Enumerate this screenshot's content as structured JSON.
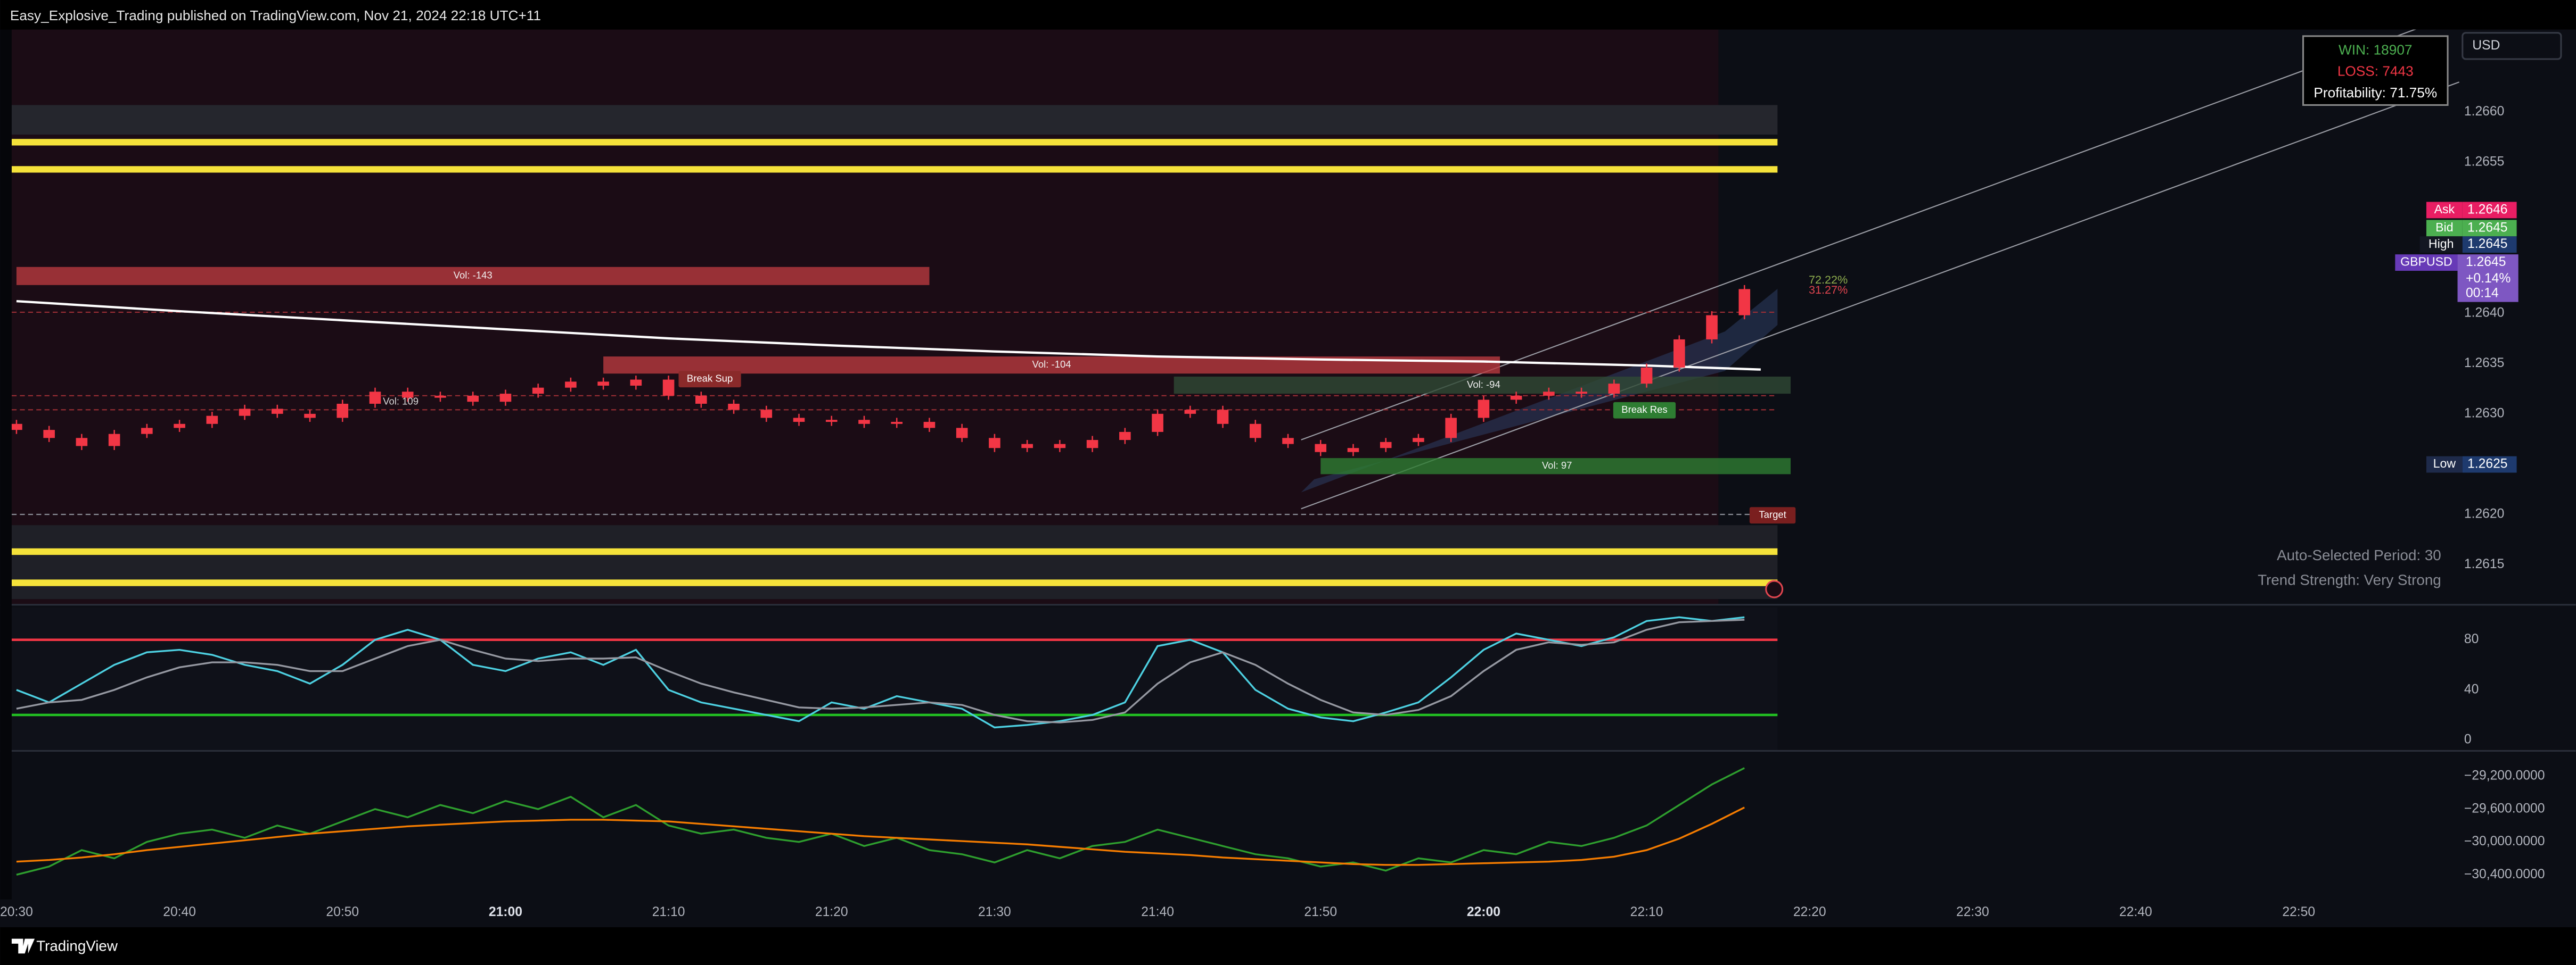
{
  "header": {
    "title": "Easy_Explosive_Trading published on TradingView.com, Nov 21, 2024 22:18 UTC+11"
  },
  "footer": {
    "brand": "TradingView"
  },
  "currency": "USD",
  "stats": {
    "win": "WIN: 18907",
    "loss": "LOSS: 7443",
    "profitability": "Profitability: 71.75%"
  },
  "quote": {
    "ask_label": "Ask",
    "ask": "1.2646",
    "bid_label": "Bid",
    "bid": "1.2645",
    "high_label": "High",
    "high": "1.2645",
    "symbol": "GBPUSD",
    "price": "1.2645",
    "change": "+0.14%",
    "countdown": "00:14",
    "low_label": "Low",
    "low": "1.2625"
  },
  "annotations": {
    "vol_left": "Vol: 109",
    "break_sup": "Break Sup",
    "break_res": "Break Res",
    "target": "Target",
    "pct_up": "72.22%",
    "pct_down": "31.27%",
    "period": "Auto-Selected Period: 30",
    "trend": "Trend Strength: Very Strong"
  },
  "chart_data": [
    {
      "type": "candlestick",
      "xlim": [
        "20:29",
        "23:07"
      ],
      "xticks": [
        "20:30",
        "20:40",
        "20:50",
        "21:00",
        "21:10",
        "21:20",
        "21:30",
        "21:40",
        "21:50",
        "22:00",
        "22:10",
        "22:20",
        "22:30",
        "22:40",
        "22:50"
      ],
      "ylim": [
        1.26111,
        1.26682
      ],
      "yticks": [
        {
          "value": 1.266,
          "label": "1.2660"
        },
        {
          "value": 1.2655,
          "label": "1.2655"
        },
        {
          "value": 1.264,
          "label": "1.2640"
        },
        {
          "value": 1.2635,
          "label": "1.2635"
        },
        {
          "value": 1.263,
          "label": "1.2630"
        },
        {
          "value": 1.262,
          "label": "1.2620"
        },
        {
          "value": 1.2615,
          "label": "1.2615"
        }
      ],
      "color": "#f23645",
      "x": [
        "20:30",
        "20:32",
        "20:34",
        "20:36",
        "20:38",
        "20:40",
        "20:42",
        "20:44",
        "20:46",
        "20:48",
        "20:50",
        "20:52",
        "20:54",
        "20:56",
        "20:58",
        "21:00",
        "21:02",
        "21:04",
        "21:06",
        "21:08",
        "21:10",
        "21:12",
        "21:14",
        "21:16",
        "21:18",
        "21:20",
        "21:22",
        "21:24",
        "21:26",
        "21:28",
        "21:30",
        "21:32",
        "21:34",
        "21:36",
        "21:38",
        "21:40",
        "21:42",
        "21:44",
        "21:46",
        "21:48",
        "21:50",
        "21:52",
        "21:54",
        "21:56",
        "21:58",
        "22:00",
        "22:02",
        "22:04",
        "22:06",
        "22:08",
        "22:10",
        "22:12",
        "22:14",
        "22:16"
      ],
      "candles": {
        "open": [
          1.2629,
          1.26284,
          1.26276,
          1.26268,
          1.2628,
          1.26286,
          1.2629,
          1.26298,
          1.26305,
          1.263,
          1.26296,
          1.2631,
          1.26322,
          1.26316,
          1.26318,
          1.26312,
          1.2632,
          1.26326,
          1.26332,
          1.26328,
          1.26334,
          1.26318,
          1.2631,
          1.26304,
          1.26296,
          1.26292,
          1.26294,
          1.2629,
          1.26292,
          1.26286,
          1.26276,
          1.26266,
          1.2627,
          1.26266,
          1.26274,
          1.26282,
          1.263,
          1.26304,
          1.2629,
          1.26276,
          1.2627,
          1.26262,
          1.26266,
          1.26272,
          1.26276,
          1.26296,
          1.26314,
          1.26318,
          1.26322,
          1.2632,
          1.2633,
          1.26346,
          1.26374,
          1.26398
        ],
        "high": [
          1.26294,
          1.26288,
          1.2628,
          1.26284,
          1.2629,
          1.26294,
          1.26302,
          1.26309,
          1.26309,
          1.26304,
          1.26314,
          1.26326,
          1.26326,
          1.26322,
          1.26322,
          1.26324,
          1.2633,
          1.26336,
          1.26336,
          1.26338,
          1.26338,
          1.26322,
          1.26314,
          1.26308,
          1.263,
          1.26298,
          1.26298,
          1.26296,
          1.26296,
          1.2629,
          1.2628,
          1.26274,
          1.26274,
          1.26278,
          1.26286,
          1.26304,
          1.26308,
          1.26308,
          1.26294,
          1.2628,
          1.26274,
          1.2627,
          1.26276,
          1.2628,
          1.263,
          1.26318,
          1.26322,
          1.26326,
          1.26326,
          1.26334,
          1.2635,
          1.26378,
          1.26402,
          1.26428
        ],
        "low": [
          1.2628,
          1.26272,
          1.26264,
          1.26264,
          1.26276,
          1.26282,
          1.26286,
          1.26294,
          1.26296,
          1.26292,
          1.26292,
          1.26306,
          1.26312,
          1.26312,
          1.26308,
          1.26308,
          1.26316,
          1.26322,
          1.26324,
          1.26324,
          1.26314,
          1.26306,
          1.263,
          1.26292,
          1.26288,
          1.26288,
          1.26286,
          1.26286,
          1.26282,
          1.26272,
          1.26262,
          1.26262,
          1.26262,
          1.26262,
          1.2627,
          1.26278,
          1.26296,
          1.26286,
          1.26272,
          1.26266,
          1.26258,
          1.26258,
          1.26262,
          1.26268,
          1.26272,
          1.26292,
          1.2631,
          1.26314,
          1.26316,
          1.26316,
          1.26326,
          1.26342,
          1.2637,
          1.26394
        ],
        "close": [
          1.26284,
          1.26276,
          1.26268,
          1.2628,
          1.26286,
          1.2629,
          1.26298,
          1.26305,
          1.263,
          1.26296,
          1.2631,
          1.26322,
          1.26316,
          1.26318,
          1.26312,
          1.2632,
          1.26326,
          1.26332,
          1.26328,
          1.26334,
          1.26318,
          1.2631,
          1.26304,
          1.26296,
          1.26292,
          1.26294,
          1.2629,
          1.26292,
          1.26286,
          1.26276,
          1.26266,
          1.2627,
          1.26266,
          1.26274,
          1.26282,
          1.263,
          1.26304,
          1.2629,
          1.26276,
          1.2627,
          1.26262,
          1.26266,
          1.26272,
          1.26276,
          1.26296,
          1.26314,
          1.26318,
          1.26322,
          1.2632,
          1.2633,
          1.26346,
          1.26374,
          1.26398,
          1.26424
        ]
      },
      "ma": {
        "color": "#ffffff",
        "x": [
          "20:30",
          "20:40",
          "20:50",
          "21:00",
          "21:10",
          "21:20",
          "21:30",
          "21:40",
          "21:50",
          "22:00",
          "22:10",
          "22:17"
        ],
        "values": [
          1.26412,
          1.26402,
          1.26393,
          1.26384,
          1.26375,
          1.26368,
          1.26362,
          1.26357,
          1.26354,
          1.26352,
          1.26348,
          1.26344
        ]
      },
      "levels": [
        1.2657,
        1.26543,
        1.26163,
        1.26132
      ],
      "level_color": "#f5e23a",
      "dashed_levels": [
        1.26401,
        1.26318,
        1.26304,
        1.262
      ],
      "zones": [
        {
          "label": "Vol: -143",
          "top": 1.26446,
          "bottom": 1.26428,
          "start": "20:30",
          "end": "21:26",
          "color": "#b8393f"
        },
        {
          "label": "Vol: -104",
          "top": 1.26357,
          "bottom": 1.2634,
          "start": "21:06",
          "end": "22:01",
          "color": "#b8393f"
        },
        {
          "label": "Vol: -94",
          "top": 1.26337,
          "bottom": 1.2632,
          "start": "21:41",
          "end": "22:19",
          "color": "#2f4a35"
        },
        {
          "label": "Vol: 97",
          "top": 1.26256,
          "bottom": 1.2624,
          "start": "21:50",
          "end": "22:19",
          "color": "#2e7d32"
        }
      ]
    },
    {
      "type": "line",
      "ylim": [
        -8,
        106
      ],
      "yticks": [
        0,
        40,
        80
      ],
      "levels": [
        80,
        20
      ],
      "level_colors": [
        "#f23645",
        "#22c122"
      ],
      "x": [
        "20:30",
        "20:32",
        "20:34",
        "20:36",
        "20:38",
        "20:40",
        "20:42",
        "20:44",
        "20:46",
        "20:48",
        "20:50",
        "20:52",
        "20:54",
        "20:56",
        "20:58",
        "21:00",
        "21:02",
        "21:04",
        "21:06",
        "21:08",
        "21:10",
        "21:12",
        "21:14",
        "21:16",
        "21:18",
        "21:20",
        "21:22",
        "21:24",
        "21:26",
        "21:28",
        "21:30",
        "21:32",
        "21:34",
        "21:36",
        "21:38",
        "21:40",
        "21:42",
        "21:44",
        "21:46",
        "21:48",
        "21:50",
        "21:52",
        "21:54",
        "21:56",
        "21:58",
        "22:00",
        "22:02",
        "22:04",
        "22:06",
        "22:08",
        "22:10",
        "22:12",
        "22:14",
        "22:16"
      ],
      "series": [
        {
          "color": "#4dd0e1",
          "values": [
            40,
            30,
            45,
            60,
            70,
            72,
            68,
            60,
            55,
            45,
            60,
            80,
            88,
            80,
            60,
            55,
            65,
            70,
            60,
            72,
            40,
            30,
            25,
            20,
            15,
            30,
            25,
            35,
            30,
            25,
            10,
            12,
            15,
            20,
            30,
            75,
            80,
            70,
            40,
            25,
            18,
            15,
            22,
            30,
            50,
            72,
            85,
            80,
            75,
            82,
            95,
            98,
            95,
            98
          ]
        },
        {
          "color": "#9598a1",
          "values": [
            25,
            30,
            32,
            40,
            50,
            58,
            62,
            62,
            60,
            55,
            55,
            65,
            75,
            80,
            72,
            65,
            63,
            65,
            65,
            66,
            55,
            45,
            38,
            32,
            26,
            25,
            26,
            28,
            30,
            28,
            20,
            15,
            14,
            16,
            22,
            45,
            62,
            70,
            60,
            45,
            32,
            22,
            20,
            24,
            35,
            55,
            72,
            78,
            76,
            78,
            88,
            94,
            95,
            96
          ]
        }
      ]
    },
    {
      "type": "line",
      "ylim": [
        -30700,
        -28900
      ],
      "yticks": [
        {
          "value": -29200,
          "label": "−29,200.0000"
        },
        {
          "value": -29600,
          "label": "−29,600.0000"
        },
        {
          "value": -30000,
          "label": "−30,000.0000"
        },
        {
          "value": -30400,
          "label": "−30,400.0000"
        }
      ],
      "x": [
        "20:30",
        "20:32",
        "20:34",
        "20:36",
        "20:38",
        "20:40",
        "20:42",
        "20:44",
        "20:46",
        "20:48",
        "20:50",
        "20:52",
        "20:54",
        "20:56",
        "20:58",
        "21:00",
        "21:02",
        "21:04",
        "21:06",
        "21:08",
        "21:10",
        "21:12",
        "21:14",
        "21:16",
        "21:18",
        "21:20",
        "21:22",
        "21:24",
        "21:26",
        "21:28",
        "21:30",
        "21:32",
        "21:34",
        "21:36",
        "21:38",
        "21:40",
        "21:42",
        "21:44",
        "21:46",
        "21:48",
        "21:50",
        "21:52",
        "21:54",
        "21:56",
        "21:58",
        "22:00",
        "22:02",
        "22:04",
        "22:06",
        "22:08",
        "22:10",
        "22:12",
        "22:14",
        "22:16"
      ],
      "series": [
        {
          "color": "#2e9e2e",
          "values": [
            -30400,
            -30300,
            -30100,
            -30200,
            -30000,
            -29900,
            -29850,
            -29950,
            -29800,
            -29900,
            -29750,
            -29600,
            -29700,
            -29550,
            -29650,
            -29500,
            -29600,
            -29450,
            -29700,
            -29550,
            -29800,
            -29900,
            -29850,
            -29950,
            -30000,
            -29900,
            -30050,
            -29950,
            -30100,
            -30150,
            -30250,
            -30100,
            -30200,
            -30050,
            -30000,
            -29850,
            -29950,
            -30050,
            -30150,
            -30200,
            -30300,
            -30250,
            -30350,
            -30200,
            -30250,
            -30100,
            -30150,
            -30000,
            -30050,
            -29950,
            -29800,
            -29550,
            -29300,
            -29100
          ]
        },
        {
          "color": "#f57c00",
          "values": [
            -30240,
            -30220,
            -30190,
            -30150,
            -30100,
            -30060,
            -30020,
            -29980,
            -29940,
            -29900,
            -29870,
            -29840,
            -29810,
            -29790,
            -29770,
            -29750,
            -29740,
            -29730,
            -29730,
            -29740,
            -29750,
            -29780,
            -29810,
            -29840,
            -29870,
            -29900,
            -29930,
            -29950,
            -29970,
            -29990,
            -30010,
            -30030,
            -30060,
            -30090,
            -30120,
            -30140,
            -30160,
            -30190,
            -30210,
            -30230,
            -30250,
            -30270,
            -30280,
            -30280,
            -30270,
            -30260,
            -30250,
            -30240,
            -30220,
            -30180,
            -30100,
            -29960,
            -29780,
            -29580
          ]
        }
      ]
    }
  ]
}
